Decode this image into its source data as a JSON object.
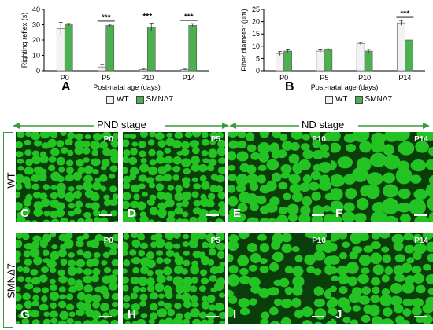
{
  "chart_data": [
    {
      "type": "bar",
      "panel": "A",
      "categories": [
        "P0",
        "P5",
        "P10",
        "P14"
      ],
      "series": [
        {
          "name": "WT",
          "values": [
            27.5,
            2.5,
            0.8,
            0.8
          ],
          "errors": [
            4,
            1.5,
            0.3,
            0.3
          ],
          "color": "#f2f2f2"
        },
        {
          "name": "SMNΔ7",
          "values": [
            30,
            29.5,
            28.5,
            29.5
          ],
          "errors": [
            0.8,
            0.8,
            2.5,
            1.2
          ],
          "color": "#4caf50"
        }
      ],
      "significance": [
        "",
        "***",
        "***",
        "***"
      ],
      "ylabel": "Righting reflex (s)",
      "xlabel": "Post-natal age (days)",
      "ylim": [
        0,
        40
      ],
      "yticks": [
        "0",
        "10",
        "20",
        "30",
        "40"
      ]
    },
    {
      "type": "bar",
      "panel": "B",
      "categories": [
        "P0",
        "P5",
        "P10",
        "P14"
      ],
      "series": [
        {
          "name": "WT",
          "values": [
            7,
            8,
            11,
            19.5
          ],
          "errors": [
            0.8,
            0.5,
            0.5,
            1
          ],
          "color": "#f2f2f2"
        },
        {
          "name": "SMNΔ7",
          "values": [
            8,
            8.5,
            8,
            12.5
          ],
          "errors": [
            0.5,
            0.4,
            0.7,
            0.8
          ],
          "color": "#4caf50"
        }
      ],
      "significance": [
        "",
        "",
        "",
        "***"
      ],
      "ylabel": "Fiber diameter (μm)",
      "xlabel": "Post-natal age (days)",
      "ylim": [
        0,
        25
      ],
      "yticks": [
        "0",
        "5",
        "10",
        "15",
        "20",
        "25"
      ]
    }
  ],
  "legend": {
    "wt": "WT",
    "smn": "SMNΔ7"
  },
  "stages": {
    "pnd": "PND stage",
    "nd": "ND stage"
  },
  "rows": {
    "wt": "WT",
    "smn": "SMNΔ7"
  },
  "tiles": [
    {
      "letter": "C",
      "age": "P0",
      "density": "tight"
    },
    {
      "letter": "D",
      "age": "P5",
      "density": "tight"
    },
    {
      "letter": "E",
      "age": "P10",
      "density": "medium"
    },
    {
      "letter": "F",
      "age": "P14",
      "density": "large"
    },
    {
      "letter": "G",
      "age": "P0",
      "density": "tight"
    },
    {
      "letter": "H",
      "age": "P5",
      "density": "tight"
    },
    {
      "letter": "I",
      "age": "P10",
      "density": "sparse"
    },
    {
      "letter": "J",
      "age": "P14",
      "density": "medium"
    }
  ],
  "colors": {
    "wt_bar": "#f2f2f2",
    "smn_bar": "#4caf50",
    "fiber": "#22c322",
    "background": "#0b3d0b",
    "arrow": "#3a9a3a"
  }
}
